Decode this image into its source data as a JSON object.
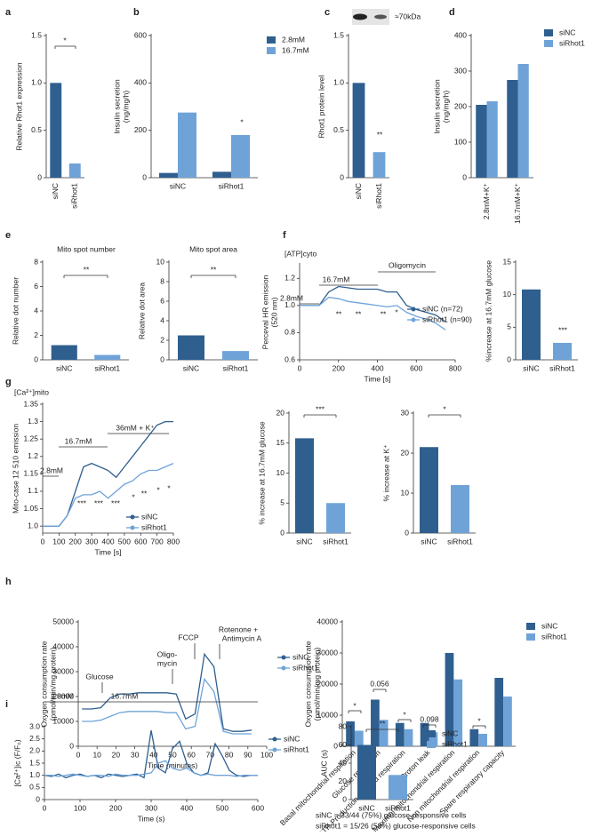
{
  "chart_data": [
    {
      "panel": "a",
      "type": "bar",
      "categories": [
        "siNC",
        "siRhot1"
      ],
      "values": [
        1.0,
        0.15
      ],
      "colors": [
        "#2f5f8f",
        "#6fa3d8"
      ],
      "y_label": [
        "Relative Rhot1 expression"
      ],
      "ylim": [
        0,
        1.5
      ],
      "yticks": [
        0,
        0.5,
        {
          "value": 1,
          "label": "1.0"
        },
        1.5
      ],
      "annotations": [
        "*"
      ]
    },
    {
      "panel": "b",
      "type": "bar",
      "categories": [
        "siNC",
        "siRhot1"
      ],
      "series": [
        {
          "name": "2.8mM",
          "color": "#2f5f8f",
          "values": [
            20,
            25
          ]
        },
        {
          "name": "16.7mM",
          "color": "#6fa3d8",
          "values": [
            275,
            180
          ]
        }
      ],
      "y_label": [
        "Insulin secretion",
        "(ng/mg/h)"
      ],
      "ylim": [
        0,
        600
      ],
      "yticks": [
        0,
        200,
        400,
        600
      ],
      "annotations": [
        "*"
      ]
    },
    {
      "panel": "c",
      "type": "bar",
      "categories": [
        "siNC",
        "siRhot1"
      ],
      "values": [
        1.0,
        0.27
      ],
      "colors": [
        "#2f5f8f",
        "#6fa3d8"
      ],
      "y_label": [
        "Rhot1 protein level"
      ],
      "ylim": [
        0,
        1.5
      ],
      "yticks": [
        0,
        0.5,
        {
          "value": 1,
          "label": "1.0"
        },
        1.5
      ],
      "annotations": [
        "**"
      ],
      "blot_label": "≈70kDa"
    },
    {
      "panel": "d",
      "type": "bar",
      "categories": [
        "2.8mM+K⁺",
        "16.7mM+K⁺"
      ],
      "series": [
        {
          "name": "siNC",
          "color": "#2f5f8f",
          "values": [
            205,
            275
          ]
        },
        {
          "name": "siRhot1",
          "color": "#6fa3d8",
          "values": [
            215,
            320
          ]
        }
      ],
      "y_label": [
        "Insulin secretion",
        "(ng/mg/h)"
      ],
      "ylim": [
        0,
        400
      ],
      "yticks": [
        0,
        100,
        200,
        300,
        400
      ]
    },
    {
      "panel": "e",
      "type": "bar",
      "title": "Mito spot number",
      "categories": [
        "siNC",
        "siRhot1"
      ],
      "values": [
        1.2,
        0.4
      ],
      "colors": [
        "#2f5f8f",
        "#6fa3d8"
      ],
      "y_label": [
        "Relative dot number"
      ],
      "ylim": [
        0,
        8
      ],
      "yticks": [
        0,
        2,
        4,
        6,
        8
      ],
      "annotations": [
        "**"
      ]
    },
    {
      "type": "bar",
      "title": "Mito spot area",
      "categories": [
        "siNC",
        "siRhot1"
      ],
      "values": [
        2.5,
        0.9
      ],
      "colors": [
        "#2f5f8f",
        "#6fa3d8"
      ],
      "y_label": [
        "Relative dot area"
      ],
      "ylim": [
        0,
        10
      ],
      "yticks": [
        0,
        2,
        4,
        6,
        8,
        10
      ],
      "annotations": [
        "**"
      ]
    },
    {
      "panel": "f",
      "type": "line",
      "title": "[ATP]cyto",
      "x": [
        0,
        50,
        100,
        150,
        200,
        250,
        300,
        350,
        400,
        450,
        500,
        550,
        600,
        650,
        700,
        750
      ],
      "series": [
        {
          "name": "siNC (n=72)",
          "color": "#2f5f8f",
          "values": [
            1.0,
            1.0,
            1.0,
            1.1,
            1.14,
            1.13,
            1.12,
            1.12,
            1.12,
            1.1,
            1.1,
            1.0,
            0.97,
            0.95,
            0.93,
            0.88
          ]
        },
        {
          "name": "siRhot1 (n=90)",
          "color": "#6fa3d8",
          "values": [
            1.0,
            1.0,
            1.0,
            1.06,
            1.05,
            1.03,
            1.02,
            1.01,
            1.0,
            0.99,
            1.0,
            0.95,
            0.92,
            0.9,
            0.87,
            0.82
          ]
        }
      ],
      "x_label": "Time [s]",
      "y_label": [
        "Perceval HR emission",
        "(520 nm)"
      ],
      "xlim": [
        0,
        800
      ],
      "xticks": [
        0,
        200,
        400,
        600,
        800
      ],
      "ylim": [
        0.6,
        1.3
      ],
      "yticks": [
        0.6,
        0.8,
        {
          "value": 1,
          "label": "1.0"
        },
        1.2
      ],
      "annotations": [
        "16.7mM",
        "Oligomycin",
        "2.8mM",
        "**",
        "**",
        "**",
        "*"
      ]
    },
    {
      "type": "bar",
      "categories": [
        "siNC",
        "siRhot1"
      ],
      "values": [
        10.8,
        2.6
      ],
      "colors": [
        "#2f5f8f",
        "#6fa3d8"
      ],
      "y_label": [
        "%increase at 16.7mM glucose"
      ],
      "ylim": [
        0,
        15
      ],
      "yticks": [
        0,
        5,
        10,
        15
      ],
      "annotations": [
        "***"
      ]
    },
    {
      "panel": "g",
      "type": "line",
      "title": "[Ca²⁺]mito",
      "x": [
        0,
        50,
        100,
        150,
        200,
        250,
        300,
        350,
        400,
        450,
        500,
        550,
        600,
        650,
        700,
        750,
        800
      ],
      "series": [
        {
          "name": "siNC",
          "color": "#2f5f8f",
          "values": [
            1.0,
            1.0,
            1.0,
            1.03,
            1.1,
            1.17,
            1.18,
            1.17,
            1.16,
            1.14,
            1.17,
            1.2,
            1.23,
            1.26,
            1.29,
            1.3,
            1.3
          ]
        },
        {
          "name": "siRhot1",
          "color": "#6fa3d8",
          "values": [
            1.0,
            1.0,
            1.0,
            1.03,
            1.08,
            1.09,
            1.09,
            1.1,
            1.08,
            1.1,
            1.12,
            1.13,
            1.15,
            1.16,
            1.16,
            1.17,
            1.18
          ]
        }
      ],
      "x_label": "Time [s]",
      "y_label": [
        "Mito-case 12 510 emission"
      ],
      "xlim": [
        0,
        800
      ],
      "xticks": [
        0,
        100,
        200,
        300,
        400,
        500,
        600,
        700,
        800
      ],
      "ylim": [
        0.98,
        1.35
      ],
      "yticks": [
        {
          "value": 1,
          "label": "1.0"
        },
        1.05,
        1.1,
        1.15,
        1.2,
        1.25,
        1.3,
        1.35
      ],
      "annotations": [
        "16.7mM",
        "36mM + K⁺",
        "2.8mM",
        "***",
        "***",
        "***",
        "*",
        "**",
        "*",
        "*"
      ]
    },
    {
      "type": "bar",
      "categories": [
        "siNC",
        "siRhot1"
      ],
      "values": [
        15.8,
        5
      ],
      "colors": [
        "#2f5f8f",
        "#6fa3d8"
      ],
      "y_label": [
        "% increase at 16.7mM glucose"
      ],
      "ylim": [
        0,
        20
      ],
      "yticks": [
        0,
        5,
        10,
        15,
        20
      ],
      "annotations": [
        "***"
      ]
    },
    {
      "type": "bar",
      "categories": [
        "siNC",
        "siRhot1"
      ],
      "values": [
        21.5,
        12
      ],
      "colors": [
        "#2f5f8f",
        "#6fa3d8"
      ],
      "y_label": [
        "% increase at K⁺"
      ],
      "ylim": [
        0,
        30
      ],
      "yticks": [
        0,
        10,
        20,
        30
      ],
      "annotations": [
        "*"
      ]
    },
    {
      "panel": "h",
      "type": "line",
      "x": [
        2,
        7,
        12,
        17,
        22,
        27,
        32,
        37,
        42,
        47,
        52,
        57,
        62,
        67,
        72,
        77,
        82,
        87,
        92
      ],
      "series": [
        {
          "name": "siNC",
          "color": "#2f5f8f",
          "values": [
            15000,
            15000,
            15500,
            19500,
            21000,
            21000,
            21500,
            21500,
            21500,
            21500,
            21000,
            11000,
            13000,
            37000,
            32000,
            7000,
            6000,
            6000,
            6500
          ]
        },
        {
          "name": "siRhot1",
          "color": "#6fa3d8",
          "values": [
            10000,
            10000,
            10500,
            12000,
            13500,
            14000,
            14000,
            14000,
            14000,
            13500,
            13500,
            7000,
            8000,
            27000,
            22000,
            6000,
            5000,
            5000,
            5000
          ]
        }
      ],
      "x_label": "Time (minutes)",
      "y_label": [
        "Oxygen consumption rate",
        "(pmol/min/mg protein)"
      ],
      "xlim": [
        0,
        100
      ],
      "xticks": [
        0,
        10,
        20,
        30,
        40,
        50,
        60,
        70,
        80,
        90,
        100
      ],
      "ylim": [
        0,
        50000
      ],
      "yticks": [
        0,
        10000,
        20000,
        30000,
        40000,
        50000
      ],
      "annotations": [
        "Glucose",
        "Oligo-",
        "mycin",
        "FCCP",
        "Rotenone +",
        "Antimycin A"
      ]
    },
    {
      "type": "bar",
      "categories": [
        "Basal mitochondrial respiration",
        "Glucose respiration",
        "ATP-Production coupled respiration",
        "Proton leak",
        "Maximal mitochondrial respiration",
        "Non mitochondrial respiration",
        "Spare respiratory capacity"
      ],
      "series": [
        {
          "name": "siNC",
          "color": "#2f5f8f",
          "values": [
            8000,
            15000,
            7500,
            7500,
            30000,
            5500,
            22000
          ]
        },
        {
          "name": "siRhot1",
          "color": "#6fa3d8",
          "values": [
            5000,
            8500,
            5500,
            4500,
            21500,
            4000,
            16000
          ]
        }
      ],
      "y_label": [
        "Oxygen consumption rate",
        "(pmol/min/mg protein)"
      ],
      "ylim": [
        0,
        40000
      ],
      "yticks": [
        0,
        10000,
        20000,
        30000,
        40000
      ],
      "annotations": [
        "*",
        "0.056",
        "*",
        "0.098",
        "*"
      ]
    },
    {
      "panel": "i",
      "type": "line",
      "x": [
        0,
        20,
        40,
        60,
        80,
        100,
        120,
        140,
        160,
        180,
        200,
        220,
        240,
        260,
        280,
        300,
        320,
        340,
        360,
        380,
        400,
        420,
        440,
        460,
        480,
        500,
        520,
        540,
        560,
        580,
        600
      ],
      "series": [
        {
          "name": "siNC",
          "color": "#2f5f8f",
          "values": [
            1.0,
            0.95,
            1.05,
            0.9,
            1.0,
            1.05,
            0.95,
            1.0,
            0.9,
            1.05,
            1.0,
            0.95,
            1.0,
            1.05,
            0.9,
            2.85,
            1.3,
            1.1,
            2.1,
            2.4,
            1.5,
            1.1,
            1.0,
            1.1,
            2.3,
            1.8,
            1.2,
            1.0,
            0.95,
            1.0,
            1.0
          ]
        },
        {
          "name": "siRhot1",
          "color": "#6fa3d8",
          "values": [
            1.0,
            1.0,
            0.95,
            1.0,
            1.05,
            1.0,
            0.95,
            1.0,
            1.0,
            0.95,
            1.05,
            1.0,
            1.0,
            1.0,
            1.05,
            1.1,
            1.5,
            1.6,
            1.3,
            1.2,
            1.3,
            1.1,
            1.0,
            1.05,
            1.0,
            1.0,
            1.0,
            0.95,
            1.0,
            1.0,
            1.0
          ]
        }
      ],
      "x_label": "Time (s)",
      "y_label": [
        "[Ca²⁺]ic (F/F₀)"
      ],
      "xlim": [
        0,
        600
      ],
      "xticks": [
        0,
        100,
        200,
        300,
        400,
        500,
        600
      ],
      "ylim": [
        0,
        3
      ],
      "yticks": [
        0,
        0.5,
        {
          "value": 1,
          "label": "1.0"
        },
        1.5,
        {
          "value": 2,
          "label": "2.0"
        },
        2.5,
        {
          "value": 3,
          "label": "3.0"
        }
      ],
      "annotations": [
        "2.8mM",
        "16.7mM"
      ]
    },
    {
      "type": "bar",
      "categories": [
        "siNC",
        "siRhot1"
      ],
      "series": [
        {
          "name": "siNC",
          "color": "#2f5f8f",
          "values": [
            60,
            null
          ]
        },
        {
          "name": "siRhot1",
          "color": "#6fa3d8",
          "values": [
            null,
            27
          ]
        }
      ],
      "y_label": [
        "AUC (s)"
      ],
      "ylim": [
        0,
        80
      ],
      "yticks": [
        0,
        20,
        40,
        60,
        80
      ],
      "annotations": [
        "**"
      ],
      "notes": [
        "siNC = 33/44 (75%) glucose-responsive cells",
        "siRhot1 = 15/26 (58%) glucose-responsive cells"
      ]
    }
  ]
}
